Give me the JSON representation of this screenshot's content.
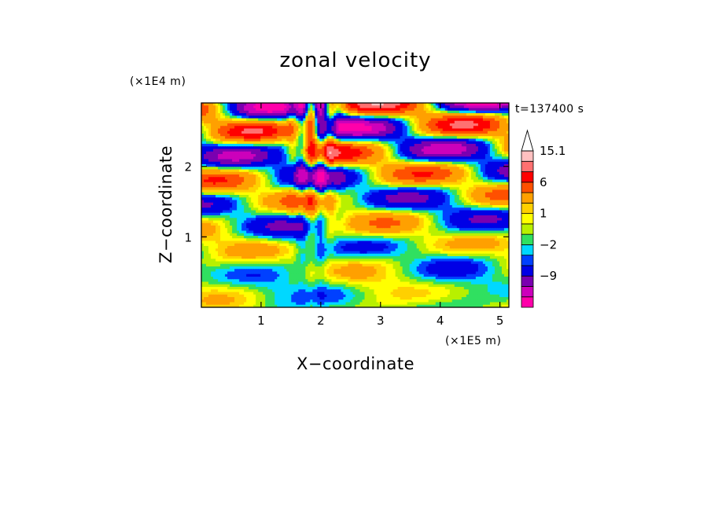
{
  "chart_data": {
    "type": "heatmap",
    "title": "zonal velocity",
    "xlabel": "X−coordinate",
    "ylabel": "Z−coordinate",
    "x_scale_note": "(×1E5 m)",
    "y_scale_note": "(×1E4 m)",
    "time_label": "t=137400 s",
    "xlim": [
      0,
      5.15
    ],
    "ylim": [
      0,
      2.9
    ],
    "x_ticks": [
      1,
      2,
      3,
      4,
      5
    ],
    "x_tick_labels": [
      "1",
      "2",
      "3",
      "4",
      "5"
    ],
    "y_ticks": [
      1,
      2
    ],
    "y_tick_labels": [
      "1",
      "2"
    ],
    "colorbar": {
      "levels": [
        -15,
        -12,
        -9,
        -6,
        -3,
        -2,
        -1,
        0,
        1,
        2,
        3,
        6,
        9,
        12,
        15.1
      ],
      "labeled_levels": [
        {
          "value": 15.1,
          "label": "15.1"
        },
        {
          "value": 6,
          "label": "6"
        },
        {
          "value": 1,
          "label": "1"
        },
        {
          "value": -2,
          "label": "−2"
        },
        {
          "value": -9,
          "label": "−9"
        }
      ],
      "colors_bottom_to_top": [
        "#ff00aa",
        "#cc00bb",
        "#7a00b0",
        "#0000e6",
        "#0040ff",
        "#00d8ff",
        "#30e060",
        "#b8f000",
        "#ffff00",
        "#ffd000",
        "#ffa000",
        "#ff5000",
        "#ff0000",
        "#ff7070",
        "#ffc0c0"
      ],
      "extension_top_color": "#ffffff"
    },
    "grid": false
  }
}
